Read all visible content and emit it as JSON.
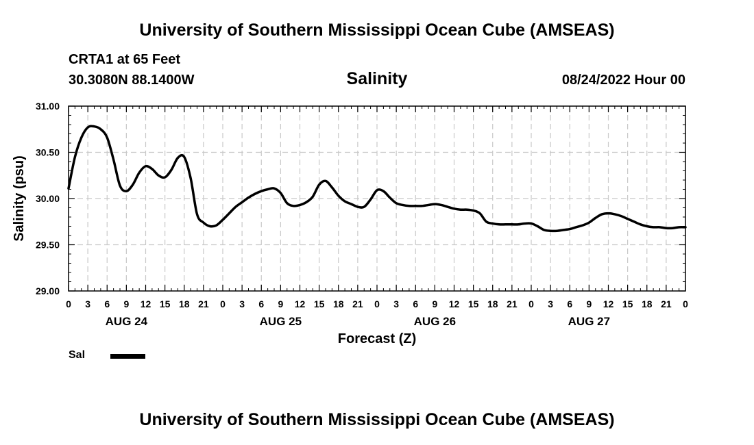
{
  "header": {
    "title": "University of Southern Mississippi Ocean Cube (AMSEAS)",
    "station": "CRTA1 at 65 Feet",
    "coords": "30.3080N  88.1400W",
    "parameter": "Salinity",
    "datetime": "08/24/2022 Hour 00"
  },
  "footer": {
    "title": "University of Southern Mississippi Ocean Cube (AMSEAS)"
  },
  "legend": {
    "label": "Sal"
  },
  "chart_data": {
    "type": "line",
    "title": "Salinity",
    "xlabel": "Forecast (Z)",
    "ylabel": "Salinity (psu)",
    "xlim": [
      0,
      96
    ],
    "ylim": [
      29.0,
      31.0
    ],
    "grid": true,
    "yticks": [
      "29.00",
      "29.50",
      "30.00",
      "30.50",
      "31.00"
    ],
    "xtick_labels": [
      "0",
      "3",
      "6",
      "9",
      "12",
      "15",
      "18",
      "21",
      "0",
      "3",
      "6",
      "9",
      "12",
      "15",
      "18",
      "21",
      "0",
      "3",
      "6",
      "9",
      "12",
      "15",
      "18",
      "21",
      "0",
      "3",
      "6",
      "9",
      "12",
      "15",
      "18",
      "21",
      "0"
    ],
    "date_labels": [
      {
        "label": "AUG 24",
        "hour": 9
      },
      {
        "label": "AUG 25",
        "hour": 33
      },
      {
        "label": "AUG 26",
        "hour": 57
      },
      {
        "label": "AUG 27",
        "hour": 81
      }
    ],
    "series": [
      {
        "name": "Sal",
        "color": "#000000",
        "x": [
          0,
          1,
          2,
          3,
          4,
          5,
          6,
          7,
          8,
          9,
          10,
          11,
          12,
          13,
          14,
          15,
          16,
          17,
          18,
          19,
          20,
          21,
          22,
          23,
          24,
          25,
          26,
          27,
          28,
          29,
          30,
          31,
          32,
          33,
          34,
          35,
          36,
          37,
          38,
          39,
          40,
          41,
          42,
          43,
          44,
          45,
          46,
          47,
          48,
          49,
          50,
          51,
          52,
          53,
          54,
          55,
          56,
          57,
          58,
          59,
          60,
          61,
          62,
          63,
          64,
          65,
          66,
          67,
          68,
          69,
          70,
          71,
          72,
          73,
          74,
          75,
          76,
          77,
          78,
          79,
          80,
          81,
          82,
          83,
          84,
          85,
          86,
          87,
          88,
          89,
          90,
          91,
          92,
          93,
          94,
          95,
          96
        ],
        "values": [
          30.11,
          30.45,
          30.66,
          30.77,
          30.78,
          30.75,
          30.66,
          30.42,
          30.14,
          30.08,
          30.15,
          30.28,
          30.35,
          30.32,
          30.25,
          30.23,
          30.31,
          30.44,
          30.45,
          30.22,
          29.83,
          29.74,
          29.7,
          29.71,
          29.77,
          29.84,
          29.91,
          29.96,
          30.01,
          30.05,
          30.08,
          30.1,
          30.11,
          30.06,
          29.95,
          29.92,
          29.93,
          29.96,
          30.02,
          30.15,
          30.19,
          30.12,
          30.03,
          29.97,
          29.94,
          29.91,
          29.91,
          29.99,
          30.09,
          30.08,
          30.01,
          29.95,
          29.93,
          29.92,
          29.92,
          29.92,
          29.93,
          29.94,
          29.93,
          29.91,
          29.89,
          29.88,
          29.88,
          29.87,
          29.84,
          29.75,
          29.73,
          29.72,
          29.72,
          29.72,
          29.72,
          29.73,
          29.73,
          29.7,
          29.66,
          29.65,
          29.65,
          29.66,
          29.67,
          29.69,
          29.71,
          29.74,
          29.79,
          29.83,
          29.84,
          29.83,
          29.81,
          29.78,
          29.75,
          29.72,
          29.7,
          29.69,
          29.69,
          29.68,
          29.68,
          29.69,
          29.69
        ]
      }
    ]
  }
}
